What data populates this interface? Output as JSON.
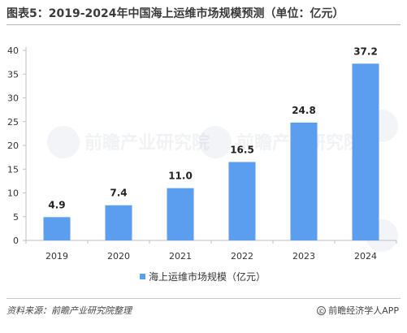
{
  "title": "图表5：2019-2024年中国海上运维市场规模预测（单位：亿元）",
  "watermark_text": "前瞻产业研究院",
  "footer": {
    "source": "资料来源：前瞻产业研究院整理",
    "brand": "前瞻经济学人APP",
    "copyright_symbol": "©"
  },
  "colors": {
    "bar": "#5b9ef0",
    "axis": "#bfbfbf",
    "text": "#333333"
  },
  "chart_data": {
    "type": "bar",
    "title": "图表5：2019-2024年中国海上运维市场规模预测（单位：亿元）",
    "categories": [
      "2019",
      "2020",
      "2021",
      "2022",
      "2023",
      "2024"
    ],
    "series": [
      {
        "name": "海上运维市场规模（亿元）",
        "values": [
          4.9,
          7.4,
          11.0,
          16.5,
          24.8,
          37.2
        ],
        "labels": [
          "4.9",
          "7.4",
          "11.0",
          "16.5",
          "24.8",
          "37.2"
        ]
      }
    ],
    "yticks": [
      "0",
      "5",
      "10",
      "15",
      "20",
      "25",
      "30",
      "35",
      "40"
    ],
    "ylim": [
      0,
      40
    ],
    "grid": false,
    "legend_position": "bottom-center",
    "xlabel": "",
    "ylabel": ""
  }
}
